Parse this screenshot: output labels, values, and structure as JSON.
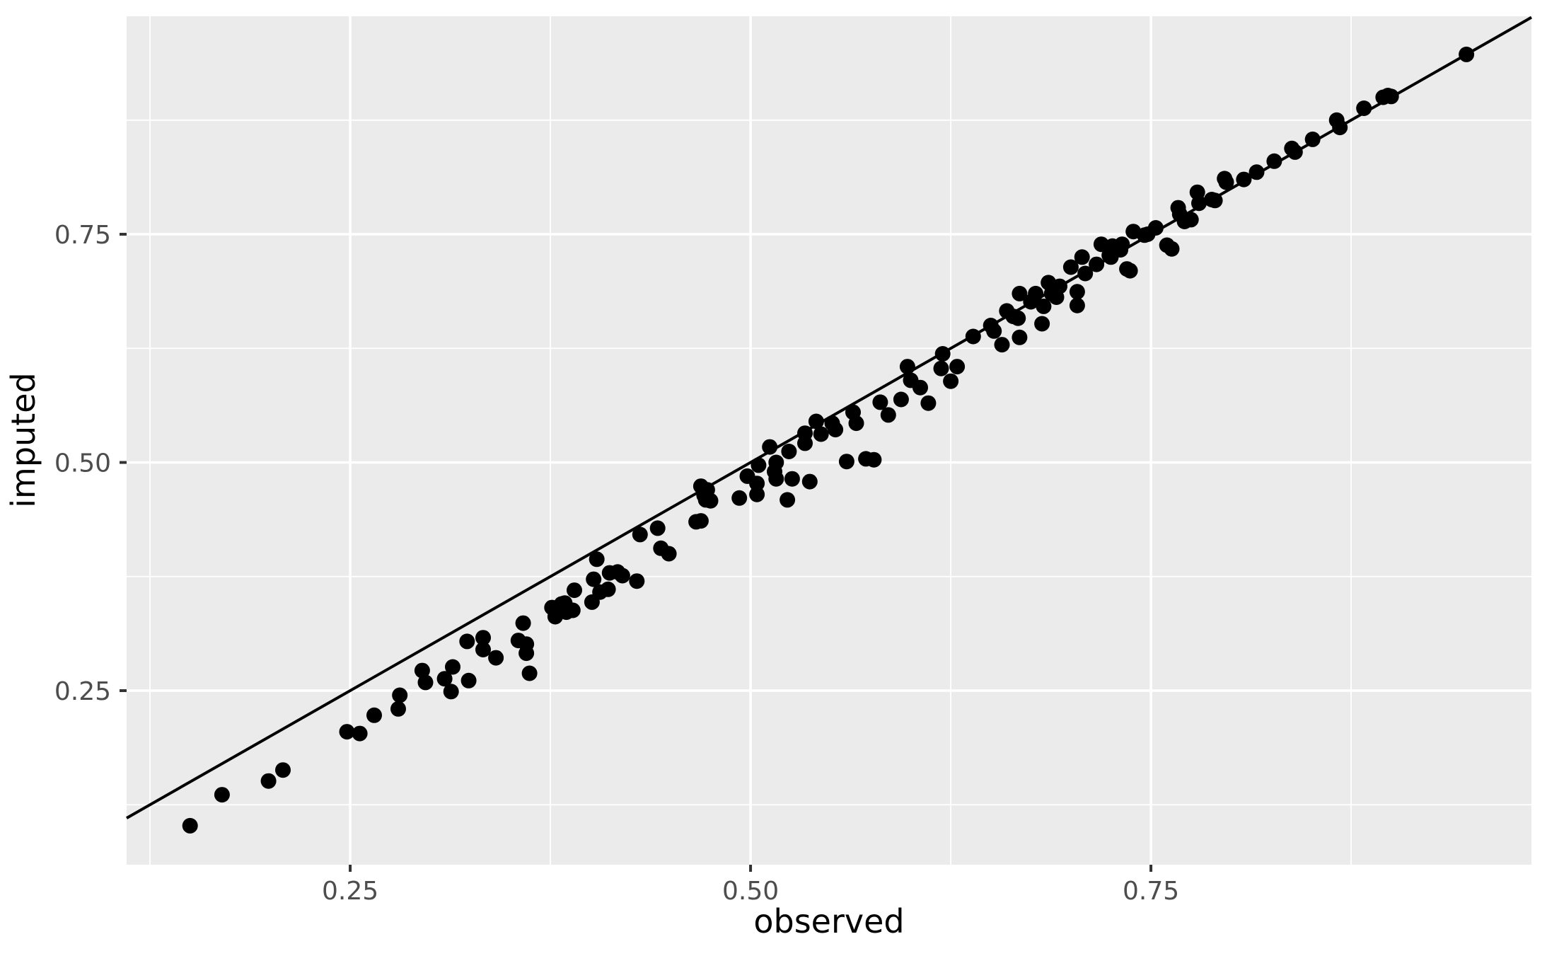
{
  "chart_data": {
    "type": "scatter",
    "title": "",
    "xlabel": "observed",
    "ylabel": "imputed",
    "x_ticks": {
      "values": [
        0.25,
        0.5,
        0.75
      ],
      "labels": [
        "0.25",
        "0.50",
        "0.75"
      ]
    },
    "y_ticks": {
      "values": [
        0.25,
        0.5,
        0.75
      ],
      "labels": [
        "0.25",
        "0.50",
        "0.75"
      ]
    },
    "x_minor_ticks": [
      0.125,
      0.375,
      0.625,
      0.875
    ],
    "y_minor_ticks": [
      0.125,
      0.375,
      0.625,
      0.875
    ],
    "xlim": [
      0.1104,
      0.9876
    ],
    "ylim": [
      0.0593,
      0.9888
    ],
    "grid": "major+minor",
    "legend_position": "none",
    "reference_line": {
      "type": "identity",
      "slope": 1,
      "intercept": 0
    },
    "points": [
      [
        0.15,
        0.102
      ],
      [
        0.17,
        0.136
      ],
      [
        0.199,
        0.151
      ],
      [
        0.208,
        0.163
      ],
      [
        0.248,
        0.205
      ],
      [
        0.256,
        0.203
      ],
      [
        0.265,
        0.223
      ],
      [
        0.28,
        0.23
      ],
      [
        0.281,
        0.245
      ],
      [
        0.295,
        0.272
      ],
      [
        0.297,
        0.259
      ],
      [
        0.309,
        0.263
      ],
      [
        0.313,
        0.249
      ],
      [
        0.314,
        0.276
      ],
      [
        0.323,
        0.304
      ],
      [
        0.324,
        0.261
      ],
      [
        0.333,
        0.308
      ],
      [
        0.333,
        0.295
      ],
      [
        0.341,
        0.286
      ],
      [
        0.355,
        0.305
      ],
      [
        0.358,
        0.324
      ],
      [
        0.36,
        0.301
      ],
      [
        0.36,
        0.291
      ],
      [
        0.362,
        0.269
      ],
      [
        0.376,
        0.341
      ],
      [
        0.378,
        0.331
      ],
      [
        0.382,
        0.345
      ],
      [
        0.384,
        0.346
      ],
      [
        0.385,
        0.336
      ],
      [
        0.389,
        0.338
      ],
      [
        0.39,
        0.36
      ],
      [
        0.401,
        0.347
      ],
      [
        0.402,
        0.372
      ],
      [
        0.404,
        0.394
      ],
      [
        0.406,
        0.358
      ],
      [
        0.411,
        0.361
      ],
      [
        0.412,
        0.379
      ],
      [
        0.417,
        0.38
      ],
      [
        0.42,
        0.376
      ],
      [
        0.429,
        0.37
      ],
      [
        0.431,
        0.421
      ],
      [
        0.442,
        0.428
      ],
      [
        0.444,
        0.406
      ],
      [
        0.449,
        0.4
      ],
      [
        0.466,
        0.435
      ],
      [
        0.469,
        0.436
      ],
      [
        0.469,
        0.474
      ],
      [
        0.471,
        0.464
      ],
      [
        0.472,
        0.459
      ],
      [
        0.473,
        0.47
      ],
      [
        0.475,
        0.458
      ],
      [
        0.493,
        0.461
      ],
      [
        0.498,
        0.485
      ],
      [
        0.504,
        0.477
      ],
      [
        0.504,
        0.465
      ],
      [
        0.505,
        0.497
      ],
      [
        0.512,
        0.517
      ],
      [
        0.515,
        0.49
      ],
      [
        0.516,
        0.5
      ],
      [
        0.516,
        0.482
      ],
      [
        0.523,
        0.459
      ],
      [
        0.524,
        0.512
      ],
      [
        0.526,
        0.482
      ],
      [
        0.534,
        0.532
      ],
      [
        0.534,
        0.521
      ],
      [
        0.537,
        0.479
      ],
      [
        0.541,
        0.545
      ],
      [
        0.544,
        0.531
      ],
      [
        0.551,
        0.543
      ],
      [
        0.553,
        0.536
      ],
      [
        0.56,
        0.501
      ],
      [
        0.564,
        0.555
      ],
      [
        0.566,
        0.543
      ],
      [
        0.572,
        0.504
      ],
      [
        0.577,
        0.503
      ],
      [
        0.581,
        0.566
      ],
      [
        0.586,
        0.552
      ],
      [
        0.594,
        0.569
      ],
      [
        0.598,
        0.605
      ],
      [
        0.6,
        0.59
      ],
      [
        0.606,
        0.582
      ],
      [
        0.611,
        0.565
      ],
      [
        0.619,
        0.603
      ],
      [
        0.62,
        0.619
      ],
      [
        0.625,
        0.589
      ],
      [
        0.629,
        0.605
      ],
      [
        0.639,
        0.638
      ],
      [
        0.65,
        0.65
      ],
      [
        0.652,
        0.644
      ],
      [
        0.657,
        0.629
      ],
      [
        0.66,
        0.666
      ],
      [
        0.664,
        0.66
      ],
      [
        0.667,
        0.658
      ],
      [
        0.668,
        0.637
      ],
      [
        0.668,
        0.685
      ],
      [
        0.675,
        0.676
      ],
      [
        0.678,
        0.685
      ],
      [
        0.682,
        0.652
      ],
      [
        0.683,
        0.671
      ],
      [
        0.686,
        0.697
      ],
      [
        0.688,
        0.685
      ],
      [
        0.691,
        0.681
      ],
      [
        0.693,
        0.693
      ],
      [
        0.7,
        0.714
      ],
      [
        0.704,
        0.687
      ],
      [
        0.704,
        0.672
      ],
      [
        0.707,
        0.725
      ],
      [
        0.709,
        0.707
      ],
      [
        0.716,
        0.717
      ],
      [
        0.719,
        0.739
      ],
      [
        0.724,
        0.727
      ],
      [
        0.725,
        0.725
      ],
      [
        0.726,
        0.737
      ],
      [
        0.731,
        0.733
      ],
      [
        0.732,
        0.739
      ],
      [
        0.735,
        0.712
      ],
      [
        0.737,
        0.71
      ],
      [
        0.739,
        0.753
      ],
      [
        0.746,
        0.749
      ],
      [
        0.748,
        0.75
      ],
      [
        0.753,
        0.757
      ],
      [
        0.76,
        0.738
      ],
      [
        0.763,
        0.734
      ],
      [
        0.767,
        0.779
      ],
      [
        0.768,
        0.772
      ],
      [
        0.771,
        0.764
      ],
      [
        0.775,
        0.766
      ],
      [
        0.779,
        0.796
      ],
      [
        0.78,
        0.784
      ],
      [
        0.788,
        0.788
      ],
      [
        0.79,
        0.787
      ],
      [
        0.796,
        0.811
      ],
      [
        0.797,
        0.807
      ],
      [
        0.808,
        0.81
      ],
      [
        0.816,
        0.818
      ],
      [
        0.827,
        0.83
      ],
      [
        0.838,
        0.844
      ],
      [
        0.84,
        0.84
      ],
      [
        0.851,
        0.854
      ],
      [
        0.866,
        0.875
      ],
      [
        0.868,
        0.867
      ],
      [
        0.883,
        0.888
      ],
      [
        0.895,
        0.9
      ],
      [
        0.898,
        0.902
      ],
      [
        0.9,
        0.901
      ],
      [
        0.947,
        0.947
      ]
    ]
  },
  "style": {
    "background": "#FFFFFF",
    "panel_bg": "#EBEBEB",
    "grid_color": "#FFFFFF",
    "point_color": "#000000",
    "line_color": "#000000",
    "tick_label_color": "#4D4D4D",
    "tick_mark_color": "#333333",
    "axis_title_color": "#000000"
  }
}
